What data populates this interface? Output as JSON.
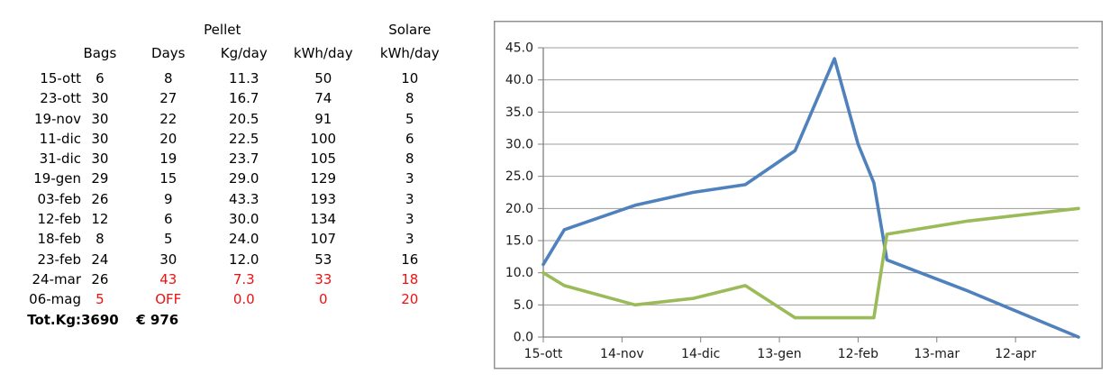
{
  "table": {
    "group_headers": {
      "pellet": "Pellet",
      "solare": "Solare"
    },
    "columns": [
      "",
      "Bags",
      "Days",
      "Kg/day",
      "kWh/day",
      "kWh/day"
    ],
    "rows": [
      {
        "cells": [
          "15-ott",
          "6",
          "8",
          "11.3",
          "50",
          "10"
        ]
      },
      {
        "cells": [
          "23-ott",
          "30",
          "27",
          "16.7",
          "74",
          "8"
        ]
      },
      {
        "cells": [
          "19-nov",
          "30",
          "22",
          "20.5",
          "91",
          "5"
        ]
      },
      {
        "cells": [
          "11-dic",
          "30",
          "20",
          "22.5",
          "100",
          "6"
        ]
      },
      {
        "cells": [
          "31-dic",
          "30",
          "19",
          "23.7",
          "105",
          "8"
        ]
      },
      {
        "cells": [
          "19-gen",
          "29",
          "15",
          "29.0",
          "129",
          "3"
        ]
      },
      {
        "cells": [
          "03-feb",
          "26",
          "9",
          "43.3",
          "193",
          "3"
        ]
      },
      {
        "cells": [
          "12-feb",
          "12",
          "6",
          "30.0",
          "134",
          "3"
        ]
      },
      {
        "cells": [
          "18-feb",
          "8",
          "5",
          "24.0",
          "107",
          "3"
        ]
      },
      {
        "cells": [
          "23-feb",
          "24",
          "30",
          "12.0",
          "53",
          "16"
        ]
      },
      {
        "cells": [
          "24-mar",
          "26",
          "43",
          "7.3",
          "33",
          "18"
        ],
        "red": [
          2,
          3,
          4,
          5
        ]
      },
      {
        "cells": [
          "06-mag",
          "5",
          "OFF",
          "0.0",
          "0",
          "20"
        ],
        "red": [
          1,
          2,
          3,
          4,
          5
        ]
      },
      {
        "cells": [
          "Tot.Kg:",
          "3690",
          "€ 976",
          "",
          "",
          ""
        ],
        "bold": true
      }
    ]
  },
  "chart_data": {
    "type": "line",
    "x_axis_type": "date",
    "x": [
      "15-ott",
      "23-ott",
      "19-nov",
      "11-dic",
      "31-dic",
      "19-gen",
      "03-feb",
      "12-feb",
      "18-feb",
      "23-feb",
      "24-mar",
      "06-mag"
    ],
    "x_tick_labels": [
      "15-ott",
      "14-nov",
      "14-dic",
      "13-gen",
      "12-feb",
      "13-mar",
      "12-apr"
    ],
    "series": [
      {
        "name": "Pellet Kg/day",
        "color": "#4F81BD",
        "values": [
          11.3,
          16.7,
          20.5,
          22.5,
          23.7,
          29.0,
          43.3,
          30.0,
          24.0,
          12.0,
          7.3,
          0.0
        ]
      },
      {
        "name": "Solare kWh/day",
        "color": "#9BBB59",
        "values": [
          10,
          8,
          5,
          6,
          8,
          3,
          3,
          3,
          3,
          16,
          18,
          20
        ]
      }
    ],
    "ylim": [
      0,
      45
    ],
    "ytick_step": 5,
    "ytick_format": "one_decimal",
    "grid": true,
    "legend": "none",
    "title": ""
  },
  "colors": {
    "red_text": "#ee1111",
    "grid": "#9c9c9c",
    "axis": "#808080",
    "chart_border": "#919191",
    "series_pellet": "#4F81BD",
    "series_solare": "#9BBB59"
  }
}
